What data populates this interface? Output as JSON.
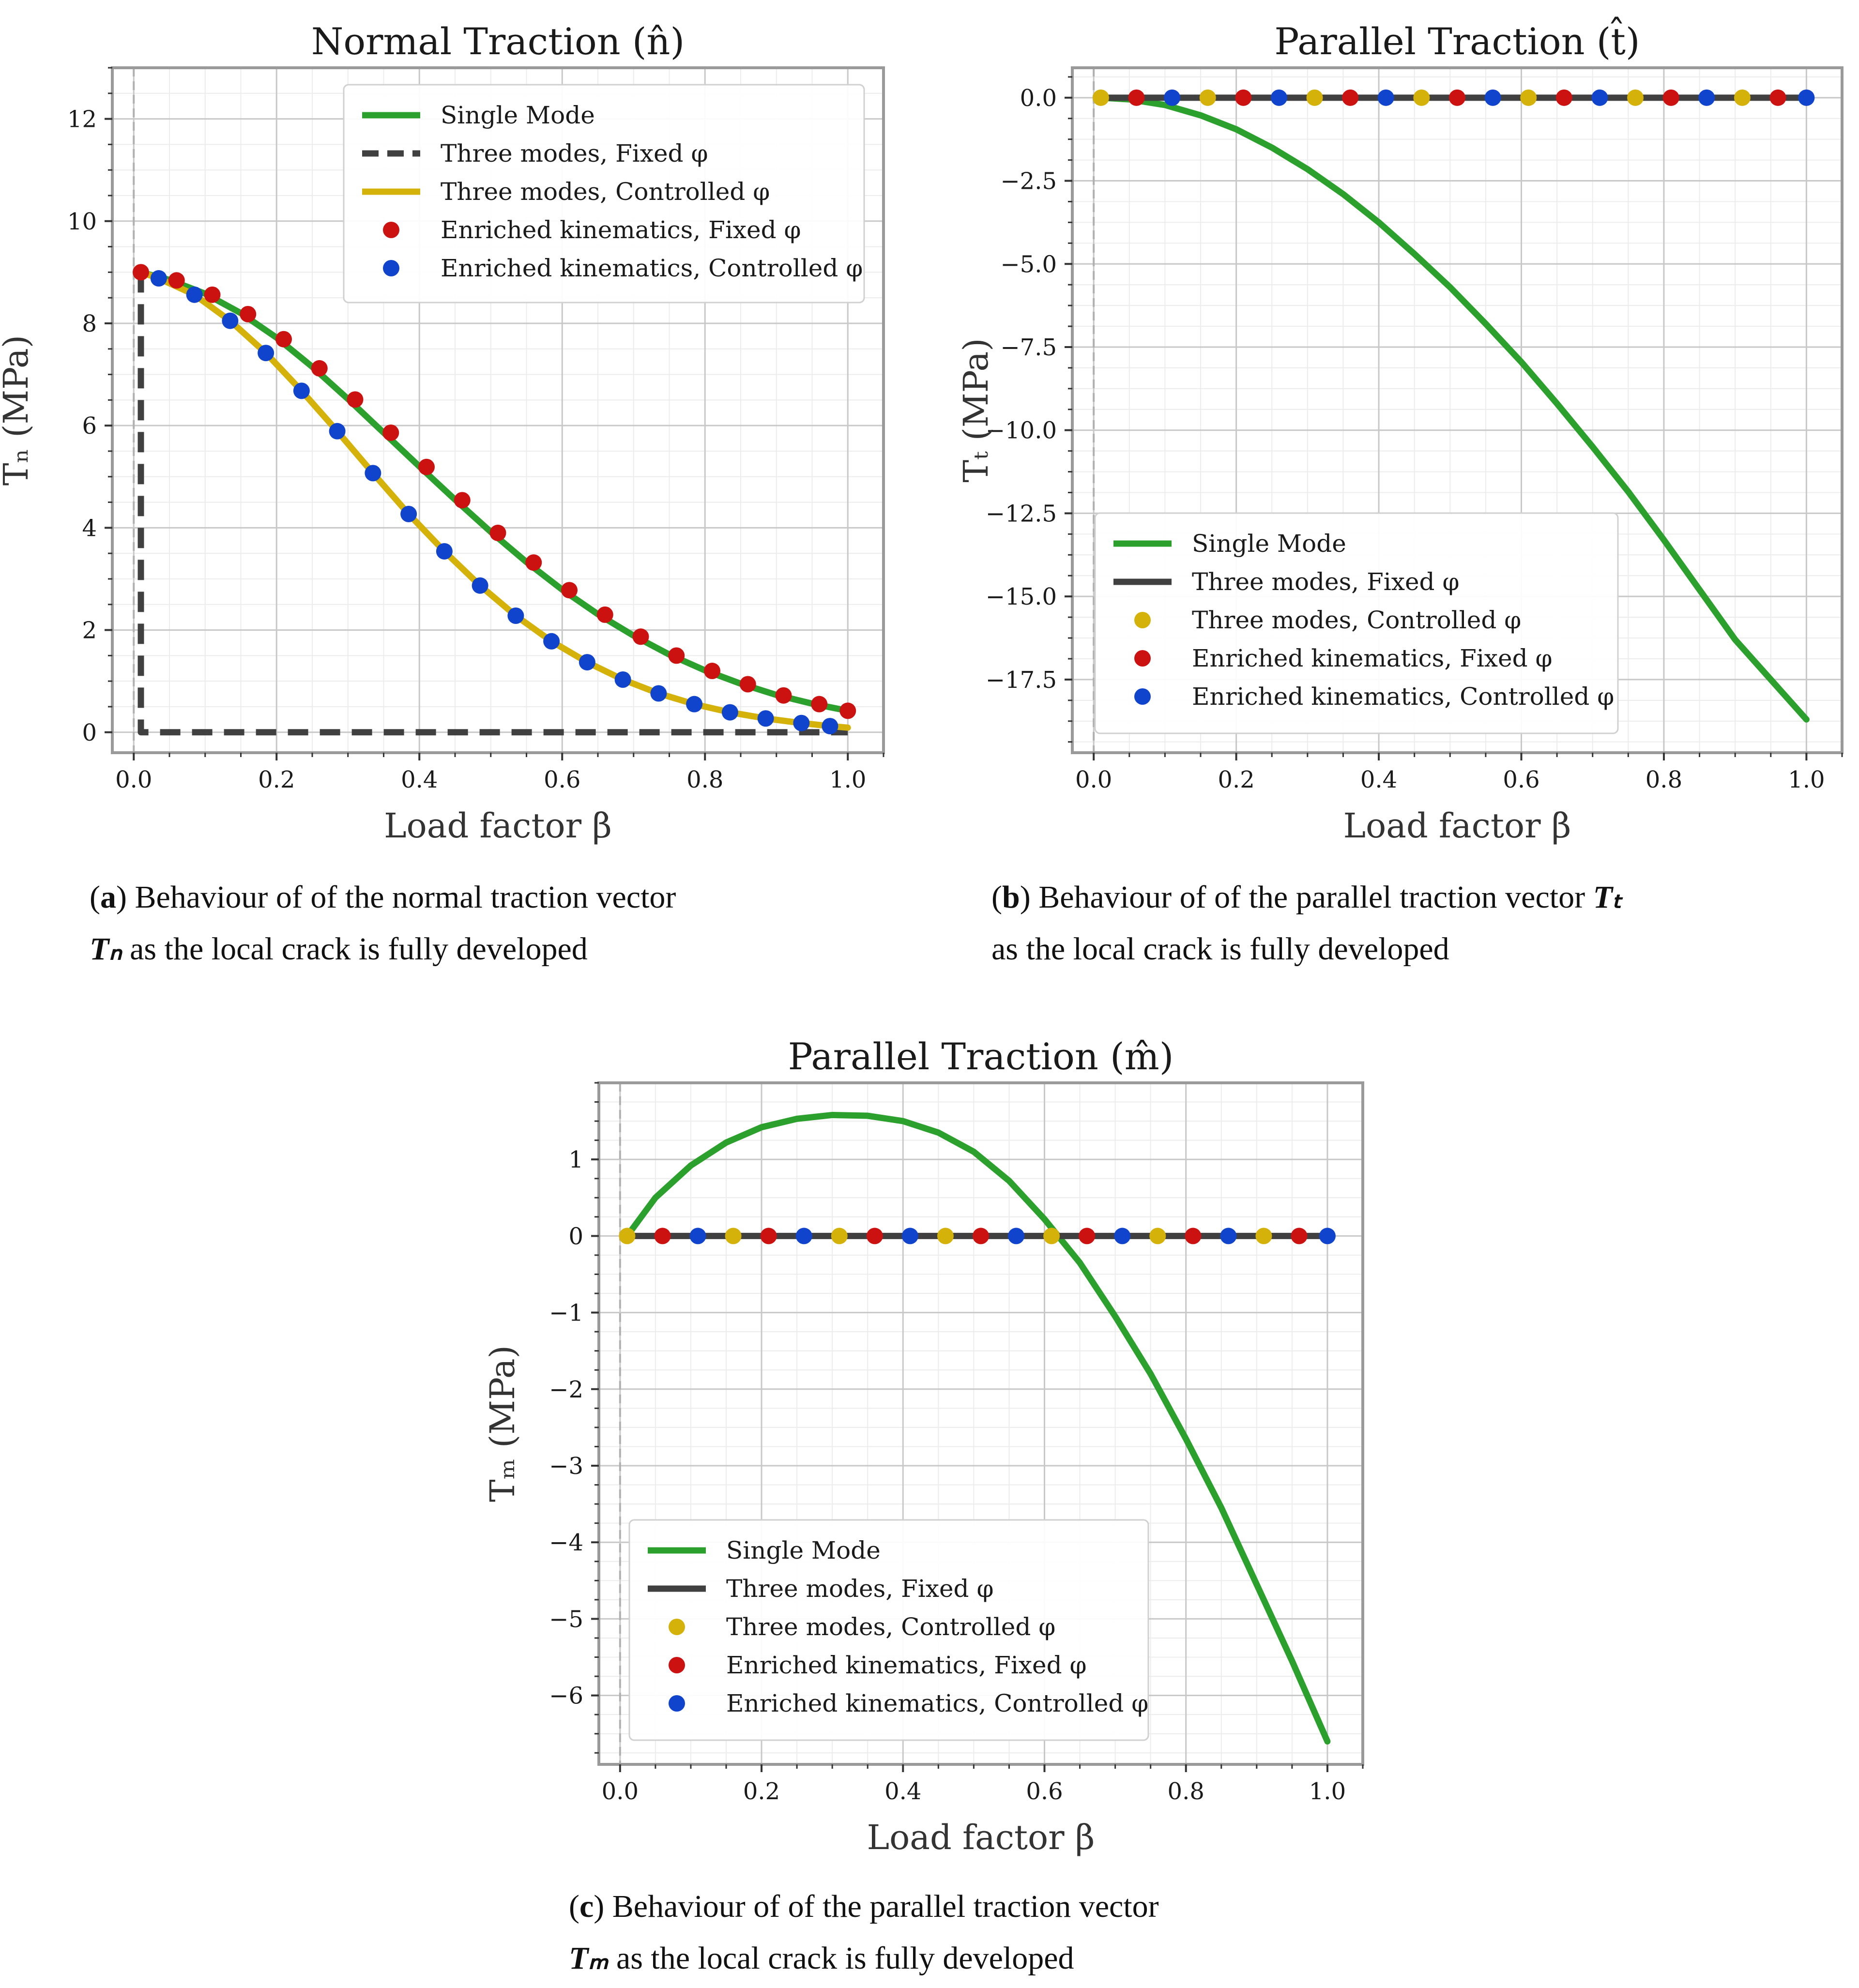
{
  "colors": {
    "single_mode": "#2ca02c",
    "three_fixed": "#404040",
    "three_controlled": "#d4b20a",
    "enriched_fixed": "#cc1111",
    "enriched_controlled": "#1144cc",
    "frame": "#9a9a9a",
    "zero_line": "#b0b0b0"
  },
  "panels": [
    {
      "key": "a",
      "title": "Normal Traction (n̂)",
      "xlabel": "Load factor β",
      "ylabel": "Tₙ (MPa)",
      "caption_tag": "a",
      "caption_line1": " Behaviour of of the normal traction vector",
      "caption_symbol": "Tₙ",
      "caption_line2": " as the local crack is fully developed",
      "caption_symbol_first": true
    },
    {
      "key": "b",
      "title": "Parallel Traction (t̂)",
      "xlabel": "Load factor β",
      "ylabel": "Tₜ (MPa)",
      "caption_tag": "b",
      "caption_line1": " Behaviour of of the parallel traction vector",
      "caption_symbol": "Tₜ",
      "caption_line2": "as the local crack is fully developed",
      "caption_symbol_first": false
    },
    {
      "key": "c",
      "title": "Parallel Traction (m̂)",
      "xlabel": "Load factor β",
      "ylabel": "Tₘ (MPa)",
      "caption_tag": "c",
      "caption_line1": " Behaviour of of the parallel traction vector",
      "caption_symbol": "Tₘ",
      "caption_line2": " as the local crack is fully developed",
      "caption_symbol_first": true
    }
  ],
  "chart_data": [
    {
      "type": "line",
      "title": "Normal Traction (n̂)",
      "xlabel": "Load factor β",
      "ylabel": "Tₙ (MPa)",
      "xlim": [
        -0.03,
        1.05
      ],
      "ylim": [
        -0.4,
        13.0
      ],
      "xticks": [
        "0.0",
        "0.2",
        "0.4",
        "0.6",
        "0.8",
        "1.0"
      ],
      "xtick_values": [
        0,
        0.2,
        0.4,
        0.6,
        0.8,
        1.0
      ],
      "yticks": [
        "0",
        "2",
        "4",
        "6",
        "8",
        "10",
        "12"
      ],
      "ytick_values": [
        0,
        2,
        4,
        6,
        8,
        10,
        12
      ],
      "legend_position": "top-right",
      "legend": [
        "Single Mode",
        "Three modes, Fixed φ",
        "Three modes, Controlled φ",
        "Enriched kinematics, Fixed φ",
        "Enriched kinematics, Controlled φ"
      ],
      "series": [
        {
          "name": "Single Mode",
          "kind": "line",
          "style": "solid",
          "color_key": "single_mode",
          "x": [
            0.01,
            0.05,
            0.1,
            0.15,
            0.2,
            0.25,
            0.3,
            0.35,
            0.4,
            0.45,
            0.5,
            0.55,
            0.6,
            0.65,
            0.7,
            0.75,
            0.8,
            0.85,
            0.9,
            0.95,
            1.0
          ],
          "y": [
            9.0,
            8.85,
            8.58,
            8.2,
            7.72,
            7.15,
            6.52,
            5.86,
            5.2,
            4.55,
            3.92,
            3.33,
            2.79,
            2.31,
            1.89,
            1.52,
            1.21,
            0.95,
            0.73,
            0.56,
            0.42
          ]
        },
        {
          "name": "Three modes, Fixed φ",
          "kind": "line",
          "style": "dashed",
          "color_key": "three_fixed",
          "x": [
            0.01,
            0.01,
            1.0
          ],
          "y": [
            9.0,
            0.0,
            0.0
          ]
        },
        {
          "name": "Three modes, Controlled φ",
          "kind": "line",
          "style": "solid",
          "color_key": "three_controlled",
          "x": [
            0.01,
            0.035,
            0.085,
            0.135,
            0.185,
            0.235,
            0.285,
            0.335,
            0.385,
            0.435,
            0.485,
            0.535,
            0.585,
            0.635,
            0.685,
            0.735,
            0.785,
            0.835,
            0.885,
            0.935,
            0.975,
            1.0
          ],
          "y": [
            9.0,
            8.88,
            8.56,
            8.05,
            7.42,
            6.68,
            5.89,
            5.07,
            4.27,
            3.54,
            2.87,
            2.28,
            1.78,
            1.37,
            1.03,
            0.76,
            0.55,
            0.39,
            0.27,
            0.18,
            0.12,
            0.09
          ]
        },
        {
          "name": "Enriched kinematics, Fixed φ",
          "kind": "scatter",
          "color_key": "enriched_fixed",
          "x": [
            0.01,
            0.06,
            0.11,
            0.16,
            0.21,
            0.26,
            0.31,
            0.36,
            0.41,
            0.46,
            0.51,
            0.56,
            0.61,
            0.66,
            0.71,
            0.76,
            0.81,
            0.86,
            0.91,
            0.96,
            1.0
          ],
          "y": [
            9.0,
            8.84,
            8.56,
            8.18,
            7.69,
            7.12,
            6.51,
            5.86,
            5.19,
            4.54,
            3.9,
            3.32,
            2.78,
            2.3,
            1.87,
            1.5,
            1.2,
            0.94,
            0.72,
            0.55,
            0.42
          ]
        },
        {
          "name": "Enriched kinematics, Controlled φ",
          "kind": "scatter",
          "color_key": "enriched_controlled",
          "x": [
            0.035,
            0.085,
            0.135,
            0.185,
            0.235,
            0.285,
            0.335,
            0.385,
            0.435,
            0.485,
            0.535,
            0.585,
            0.635,
            0.685,
            0.735,
            0.785,
            0.835,
            0.885,
            0.935,
            0.975
          ],
          "y": [
            8.88,
            8.56,
            8.05,
            7.42,
            6.68,
            5.89,
            5.07,
            4.27,
            3.54,
            2.87,
            2.28,
            1.78,
            1.37,
            1.03,
            0.76,
            0.55,
            0.39,
            0.27,
            0.18,
            0.12
          ]
        }
      ]
    },
    {
      "type": "line",
      "title": "Parallel Traction (t̂)",
      "xlabel": "Load factor β",
      "ylabel": "Tₜ (MPa)",
      "xlim": [
        -0.03,
        1.05
      ],
      "ylim": [
        -19.7,
        0.9
      ],
      "xticks": [
        "0.0",
        "0.2",
        "0.4",
        "0.6",
        "0.8",
        "1.0"
      ],
      "xtick_values": [
        0,
        0.2,
        0.4,
        0.6,
        0.8,
        1.0
      ],
      "yticks": [
        "0.0",
        "−2.5",
        "−5.0",
        "−7.5",
        "−10.0",
        "−12.5",
        "−15.0",
        "−17.5"
      ],
      "ytick_values": [
        0,
        -2.5,
        -5.0,
        -7.5,
        -10.0,
        -12.5,
        -15.0,
        -17.5
      ],
      "legend_position": "lower-left",
      "legend": [
        "Single Mode",
        "Three modes, Fixed φ",
        "Three modes, Controlled φ",
        "Enriched kinematics, Fixed φ",
        "Enriched kinematics, Controlled φ"
      ],
      "series": [
        {
          "name": "Single Mode",
          "kind": "line",
          "style": "solid",
          "color_key": "single_mode",
          "x": [
            0.01,
            0.05,
            0.1,
            0.15,
            0.2,
            0.25,
            0.3,
            0.35,
            0.4,
            0.45,
            0.5,
            0.55,
            0.6,
            0.65,
            0.7,
            0.75,
            0.8,
            0.85,
            0.9,
            0.95,
            1.0
          ],
          "y": [
            0.0,
            -0.05,
            -0.22,
            -0.53,
            -0.95,
            -1.5,
            -2.15,
            -2.9,
            -3.75,
            -4.7,
            -5.7,
            -6.8,
            -7.95,
            -9.2,
            -10.5,
            -11.85,
            -13.3,
            -14.8,
            -16.3,
            -17.5,
            -18.7
          ]
        },
        {
          "name": "Three modes, Fixed φ",
          "kind": "line",
          "style": "solid",
          "color_key": "three_fixed",
          "x": [
            0.01,
            1.0
          ],
          "y": [
            0.0,
            0.0
          ]
        },
        {
          "name": "Three modes, Controlled φ",
          "kind": "scatter",
          "color_key": "three_controlled",
          "x": [
            0.01,
            0.16,
            0.31,
            0.46,
            0.61,
            0.76,
            0.91
          ],
          "y": [
            0,
            0,
            0,
            0,
            0,
            0,
            0
          ]
        },
        {
          "name": "Enriched kinematics, Fixed φ",
          "kind": "scatter",
          "color_key": "enriched_fixed",
          "x": [
            0.06,
            0.21,
            0.36,
            0.51,
            0.66,
            0.81,
            0.96
          ],
          "y": [
            0,
            0,
            0,
            0,
            0,
            0,
            0
          ]
        },
        {
          "name": "Enriched kinematics, Controlled φ",
          "kind": "scatter",
          "color_key": "enriched_controlled",
          "x": [
            0.11,
            0.26,
            0.41,
            0.56,
            0.71,
            0.86,
            1.0
          ],
          "y": [
            0,
            0,
            0,
            0,
            0,
            0,
            0
          ]
        }
      ]
    },
    {
      "type": "line",
      "title": "Parallel Traction (m̂)",
      "xlabel": "Load factor β",
      "ylabel": "Tₘ (MPa)",
      "xlim": [
        -0.03,
        1.05
      ],
      "ylim": [
        -6.9,
        2.0
      ],
      "xticks": [
        "0.0",
        "0.2",
        "0.4",
        "0.6",
        "0.8",
        "1.0"
      ],
      "xtick_values": [
        0,
        0.2,
        0.4,
        0.6,
        0.8,
        1.0
      ],
      "yticks": [
        "1",
        "0",
        "−1",
        "−2",
        "−3",
        "−4",
        "−5",
        "−6"
      ],
      "ytick_values": [
        1,
        0,
        -1,
        -2,
        -3,
        -4,
        -5,
        -6
      ],
      "legend_position": "lower-left",
      "legend": [
        "Single Mode",
        "Three modes, Fixed φ",
        "Three modes, Controlled φ",
        "Enriched kinematics, Fixed φ",
        "Enriched kinematics, Controlled φ"
      ],
      "series": [
        {
          "name": "Single Mode",
          "kind": "line",
          "style": "solid",
          "color_key": "single_mode",
          "x": [
            0.01,
            0.05,
            0.1,
            0.15,
            0.2,
            0.25,
            0.3,
            0.35,
            0.4,
            0.45,
            0.5,
            0.55,
            0.6,
            0.65,
            0.7,
            0.75,
            0.8,
            0.85,
            0.9,
            0.95,
            1.0
          ],
          "y": [
            0.0,
            0.5,
            0.92,
            1.22,
            1.42,
            1.53,
            1.58,
            1.57,
            1.5,
            1.35,
            1.1,
            0.72,
            0.22,
            -0.35,
            -1.05,
            -1.8,
            -2.65,
            -3.55,
            -4.55,
            -5.55,
            -6.6
          ]
        },
        {
          "name": "Three modes, Fixed φ",
          "kind": "line",
          "style": "solid",
          "color_key": "three_fixed",
          "x": [
            0.01,
            1.0
          ],
          "y": [
            0.0,
            0.0
          ]
        },
        {
          "name": "Three modes, Controlled φ",
          "kind": "scatter",
          "color_key": "three_controlled",
          "x": [
            0.01,
            0.16,
            0.31,
            0.46,
            0.61,
            0.76,
            0.91
          ],
          "y": [
            0,
            0,
            0,
            0,
            0,
            0,
            0
          ]
        },
        {
          "name": "Enriched kinematics, Fixed φ",
          "kind": "scatter",
          "color_key": "enriched_fixed",
          "x": [
            0.06,
            0.21,
            0.36,
            0.51,
            0.66,
            0.81,
            0.96
          ],
          "y": [
            0,
            0,
            0,
            0,
            0,
            0,
            0
          ]
        },
        {
          "name": "Enriched kinematics, Controlled φ",
          "kind": "scatter",
          "color_key": "enriched_controlled",
          "x": [
            0.11,
            0.26,
            0.41,
            0.56,
            0.71,
            0.86,
            1.0
          ],
          "y": [
            0,
            0,
            0,
            0,
            0,
            0,
            0
          ]
        }
      ]
    }
  ]
}
